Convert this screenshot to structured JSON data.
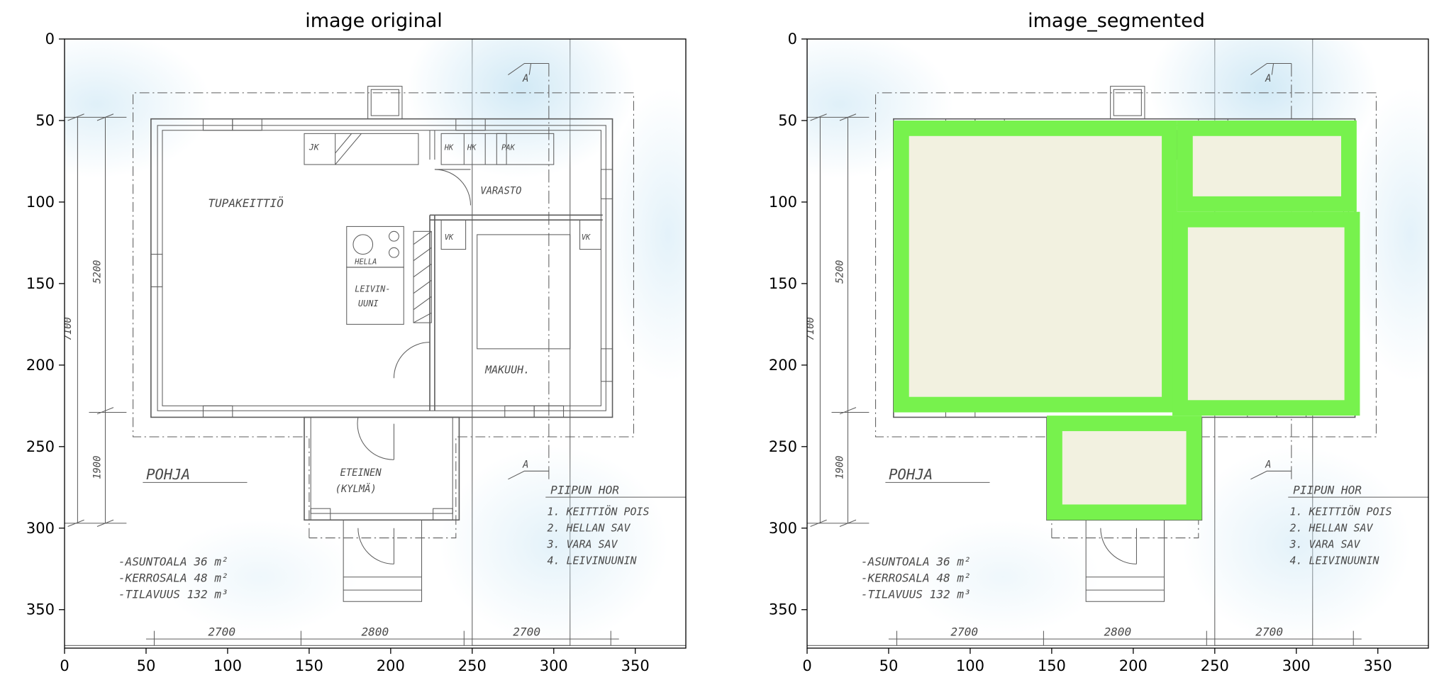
{
  "figure": {
    "left_title": "image original",
    "right_title": "image_segmented"
  },
  "axes": {
    "x_ticks": [
      "0",
      "50",
      "100",
      "150",
      "200",
      "250",
      "300",
      "350"
    ],
    "y_ticks": [
      "0",
      "50",
      "100",
      "150",
      "200",
      "250",
      "300",
      "350"
    ],
    "x_range": [
      0,
      380
    ],
    "y_range": [
      0,
      372
    ]
  },
  "plan": {
    "rooms": {
      "tupakeittio": "TUPAKEITTIÖ",
      "varasto": "VARASTO",
      "makuuh": "MAKUUH.",
      "eteinen": "ETEINEN",
      "kylma": "(KYLMÄ)",
      "hella": "HELLA",
      "leivin1": "LEIVIN-",
      "leivin2": "UUNI",
      "jk": "JK",
      "hk1": "HK",
      "hk2": "HK",
      "pak": "PAK",
      "vk1": "VK",
      "vk2": "VK"
    },
    "title": "POHJA",
    "section_mark": "A",
    "dims": {
      "bottom": [
        "2700",
        "2800",
        "2700"
      ],
      "left_outer": "7100",
      "left_upper": "5200",
      "left_lower": "1900"
    },
    "area_notes": [
      "-ASUNTOALA  36 m²",
      "-KERROSALA  48 m²",
      "-TILAVUUS  132 m³"
    ],
    "chimney_notes": {
      "header": "PIIPUN  HOR",
      "items": [
        "1. KEITTIÖN  POIS",
        "2. HELLAN  SAV",
        "3. VARA  SAV",
        "4. LEIVINUUNIN"
      ]
    }
  },
  "segmentation": {
    "wall_color": "#77f24d",
    "room_fill": "#f2f1e0",
    "rooms": [
      {
        "name": "kitchen",
        "x0": 53,
        "y0": 50,
        "x1": 227,
        "y1": 229
      },
      {
        "name": "storage",
        "x0": 227,
        "y0": 50,
        "x1": 337,
        "y1": 106
      },
      {
        "name": "bedroom",
        "x0": 224,
        "y0": 106,
        "x1": 339,
        "y1": 231
      },
      {
        "name": "entry",
        "x0": 147,
        "y0": 231,
        "x1": 242,
        "y1": 295
      }
    ]
  }
}
